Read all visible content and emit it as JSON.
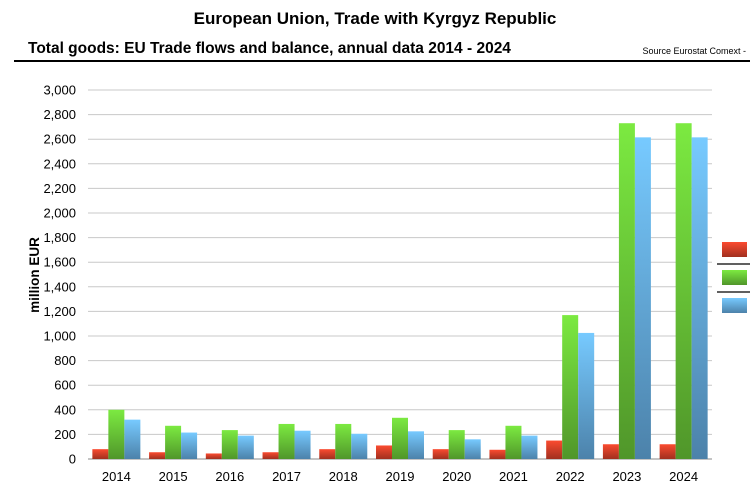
{
  "header": {
    "title": "European Union, Trade with Kyrgyz Republic",
    "subtitle": "Total goods: EU Trade flows and balance, annual data 2014 - 2024",
    "source": "Source Eurostat Comext  -"
  },
  "colors": {
    "series_1": "#e0432b",
    "series_2": "#6fd13a",
    "series_3": "#6ab4ec",
    "grid": "#c8c8c8"
  },
  "chart_data": {
    "type": "bar",
    "title": "European Union, Trade with Kyrgyz Republic",
    "subtitle": "Total goods: EU Trade flows and balance, annual data 2014 - 2024",
    "xlabel": "",
    "ylabel": "million EUR",
    "ylim": [
      0,
      3000
    ],
    "yticks": [
      0,
      200,
      400,
      600,
      800,
      1000,
      1200,
      1400,
      1600,
      1800,
      2000,
      2200,
      2400,
      2600,
      2800,
      3000
    ],
    "ytick_labels": [
      "0",
      "200",
      "400",
      "600",
      "800",
      "1,000",
      "1,200",
      "1,400",
      "1,600",
      "1,800",
      "2,000",
      "2,200",
      "2,400",
      "2,600",
      "2,800",
      "3,000"
    ],
    "grid": true,
    "legend": "right",
    "categories": [
      "2014",
      "2015",
      "2016",
      "2017",
      "2018",
      "2019",
      "2020",
      "2021",
      "2022",
      "2023",
      "2024"
    ],
    "series": [
      {
        "values": [
          80,
          55,
          45,
          55,
          80,
          110,
          80,
          75,
          150,
          120,
          120
        ]
      },
      {
        "values": [
          400,
          270,
          235,
          285,
          285,
          335,
          235,
          270,
          1170,
          2730,
          2730
        ]
      },
      {
        "values": [
          320,
          215,
          190,
          230,
          205,
          225,
          160,
          190,
          1025,
          2615,
          2615
        ]
      }
    ]
  }
}
